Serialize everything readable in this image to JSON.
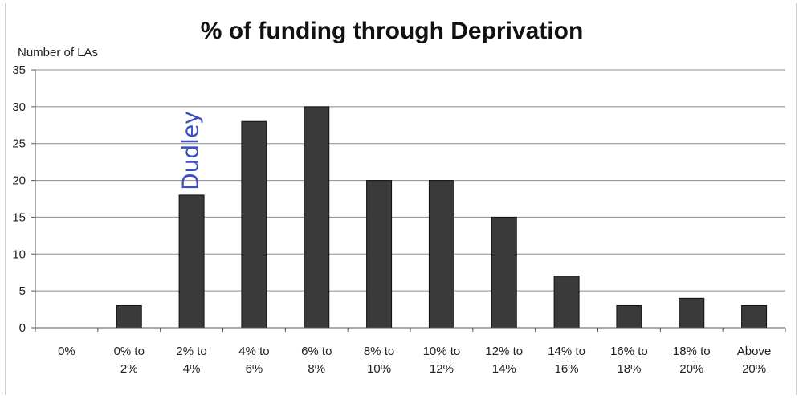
{
  "chart_data": {
    "type": "bar",
    "title": "% of funding through Deprivation",
    "ylabel": "Number of LAs",
    "xlabel": "",
    "ylim": [
      0,
      35
    ],
    "yticks": [
      0,
      5,
      10,
      15,
      20,
      25,
      30,
      35
    ],
    "grid": true,
    "categories": [
      [
        "0%"
      ],
      [
        "0% to",
        "2%"
      ],
      [
        "2% to",
        "4%"
      ],
      [
        "4% to",
        "6%"
      ],
      [
        "6% to",
        "8%"
      ],
      [
        "8% to",
        "10%"
      ],
      [
        "10% to",
        "12%"
      ],
      [
        "12% to",
        "14%"
      ],
      [
        "14% to",
        "16%"
      ],
      [
        "16% to",
        "18%"
      ],
      [
        "18% to",
        "20%"
      ],
      [
        "Above",
        "20%"
      ]
    ],
    "values": [
      0,
      3,
      18,
      28,
      30,
      20,
      20,
      15,
      7,
      3,
      4,
      3
    ],
    "bar_color": "#3a3a3a",
    "annotation": {
      "text": "Dudley",
      "category_index": 2,
      "color": "#3b4fc4"
    }
  }
}
